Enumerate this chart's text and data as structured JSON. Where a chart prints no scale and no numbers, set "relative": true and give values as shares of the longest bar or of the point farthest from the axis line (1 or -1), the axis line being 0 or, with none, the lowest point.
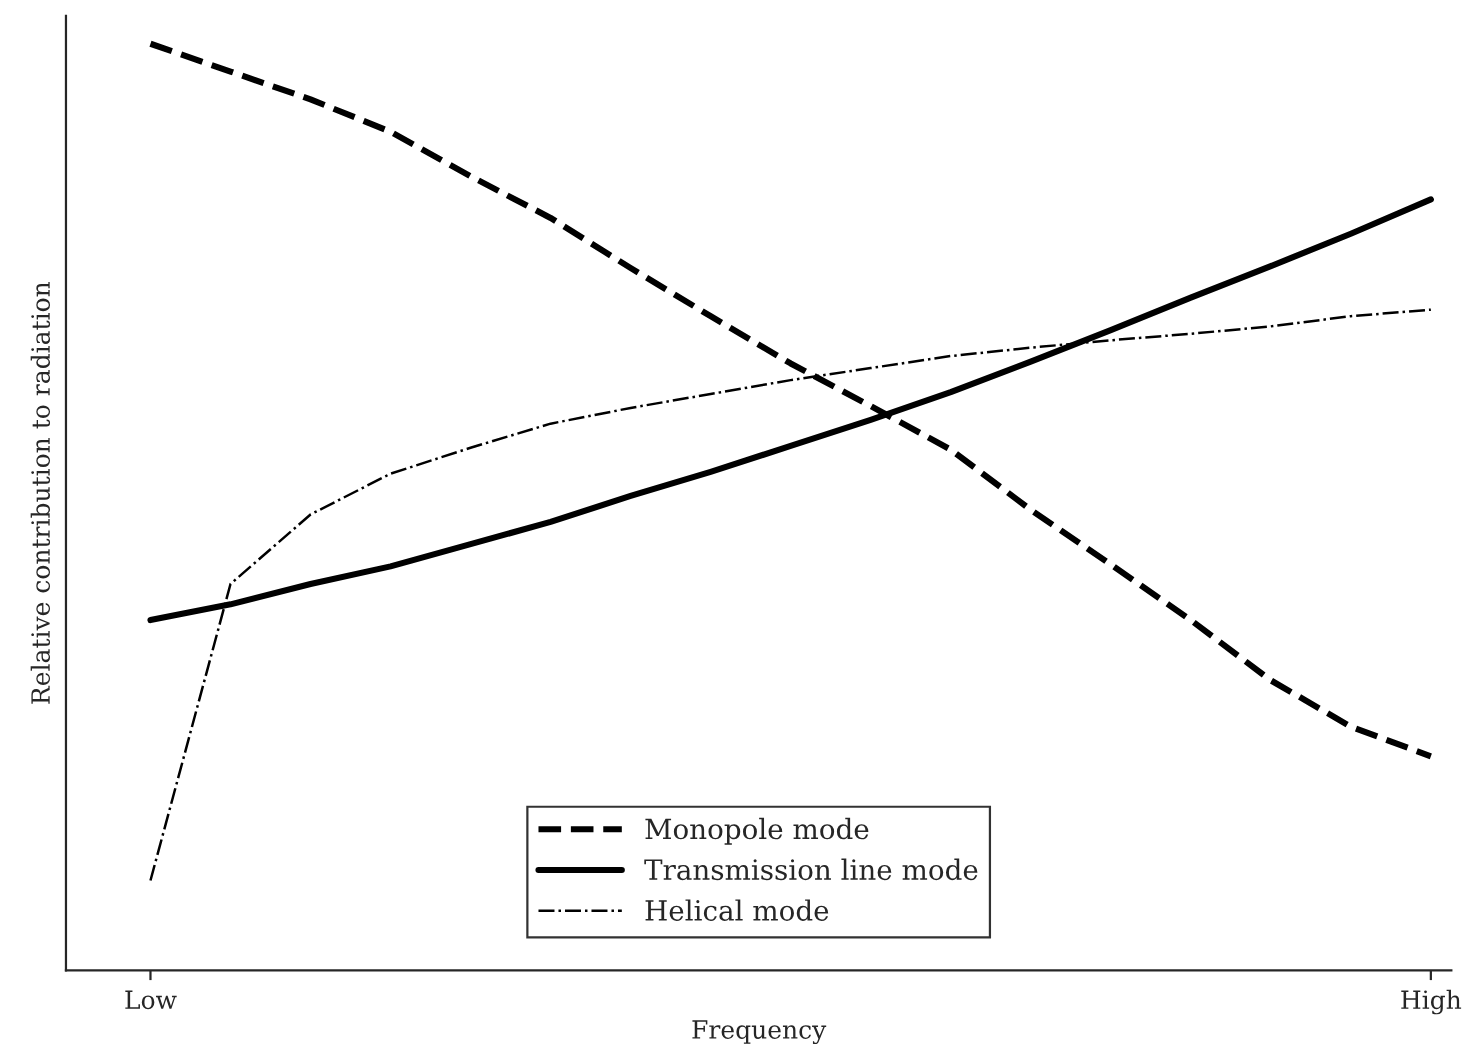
{
  "chart_data": {
    "type": "line",
    "relative": true,
    "xlabel": "Frequency",
    "ylabel": "Relative contribution to radiation",
    "categories": [
      "Low",
      null,
      null,
      null,
      null,
      null,
      null,
      null,
      null,
      null,
      null,
      null,
      null,
      null,
      null,
      null,
      "High"
    ],
    "legend": "bottom",
    "grid": false,
    "marker": "none",
    "series": [
      {
        "name": "Monopole mode",
        "color": "#000000",
        "line_style": "dashed",
        "values": [
          1.0,
          0.97,
          0.94,
          0.905,
          0.857,
          0.812,
          0.758,
          0.706,
          0.655,
          0.609,
          0.562,
          0.497,
          0.438,
          0.378,
          0.313,
          0.263,
          0.231
        ]
      },
      {
        "name": "Transmission line mode",
        "color": "#000000",
        "line_style": "solid",
        "values": [
          0.378,
          0.395,
          0.417,
          0.436,
          0.46,
          0.484,
          0.512,
          0.538,
          0.566,
          0.594,
          0.624,
          0.657,
          0.691,
          0.726,
          0.76,
          0.795,
          0.832
        ]
      },
      {
        "name": "Helical mode",
        "color": "#000000",
        "line_style": "dashdot",
        "values": [
          0.097,
          0.417,
          0.492,
          0.536,
          0.564,
          0.59,
          0.607,
          0.622,
          0.637,
          0.65,
          0.663,
          0.672,
          0.68,
          0.687,
          0.695,
          0.706,
          0.713
        ]
      }
    ]
  }
}
